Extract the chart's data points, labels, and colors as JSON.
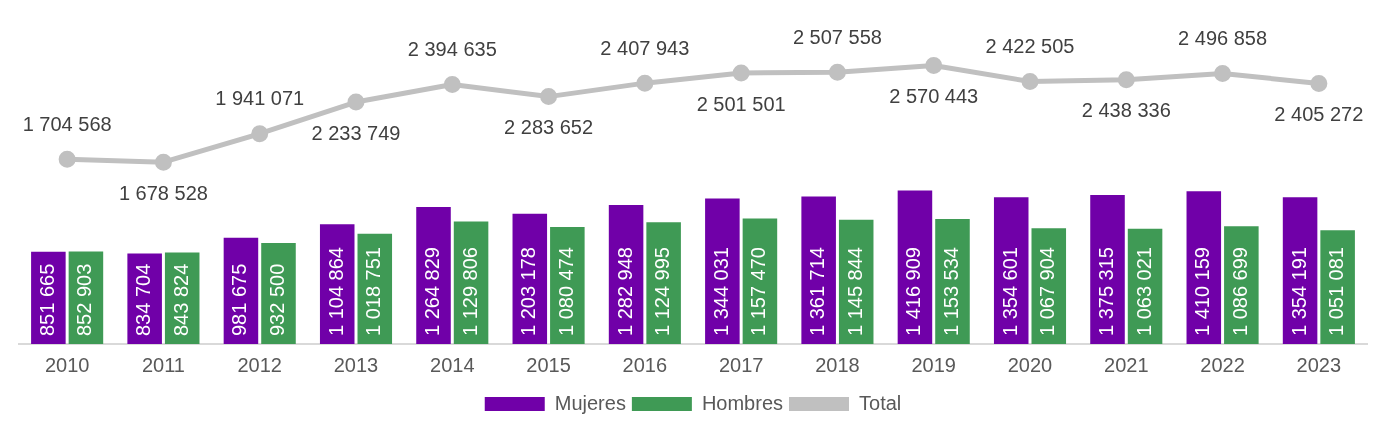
{
  "chart_data": {
    "type": "bar",
    "categories": [
      "2010",
      "2011",
      "2012",
      "2013",
      "2014",
      "2015",
      "2016",
      "2017",
      "2018",
      "2019",
      "2020",
      "2021",
      "2022",
      "2023"
    ],
    "series": [
      {
        "name": "Mujeres",
        "color": "#7000a8",
        "values": [
          851665,
          834704,
          981675,
          1104864,
          1264829,
          1203178,
          1282948,
          1344031,
          1361714,
          1416909,
          1354601,
          1375315,
          1410159,
          1354191
        ]
      },
      {
        "name": "Hombres",
        "color": "#3f9a55",
        "values": [
          852903,
          843824,
          932500,
          1018751,
          1129806,
          1080474,
          1124995,
          1157470,
          1145844,
          1153534,
          1067904,
          1063021,
          1086699,
          1051081
        ]
      },
      {
        "name": "Total",
        "type": "line",
        "color": "#c0c0c0",
        "values": [
          1704568,
          1678528,
          1941071,
          2233749,
          2394635,
          2283652,
          2407943,
          2501501,
          2507558,
          2570443,
          2422505,
          2438336,
          2496858,
          2405272
        ]
      }
    ],
    "tick_labels": "x",
    "data_labels": true,
    "legend": "bottom",
    "marker": "circle",
    "grid": false
  }
}
